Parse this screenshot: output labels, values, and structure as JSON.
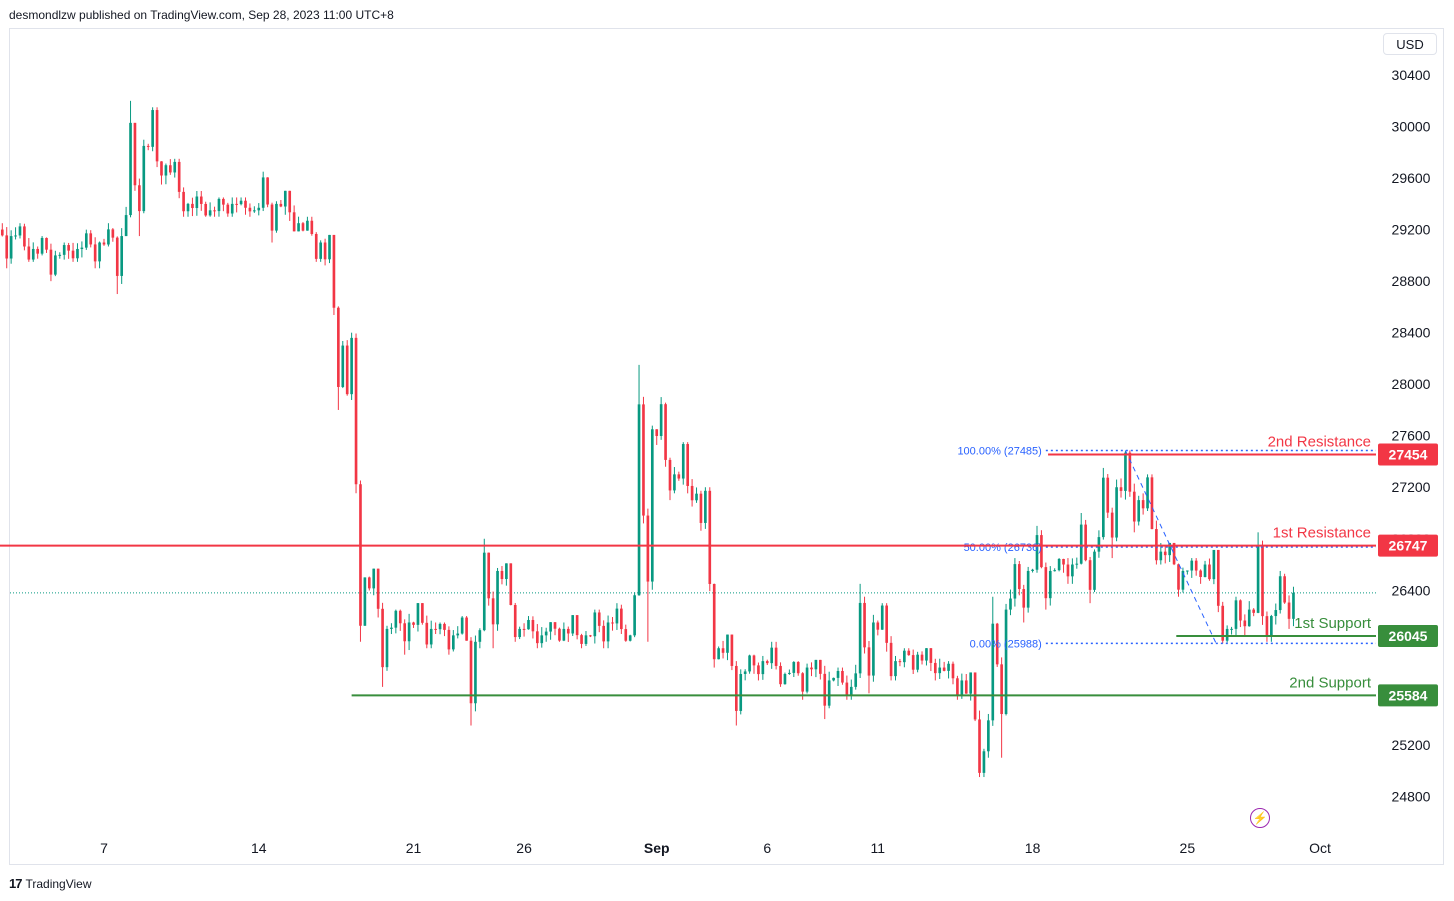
{
  "header": {
    "published_by": "desmondlzw published on TradingView.com, Sep 28, 2023 11:00 UTC+8"
  },
  "footer": {
    "brand": "TradingView"
  },
  "currency_button": "USD",
  "colors": {
    "up": "#089981",
    "down": "#f23645",
    "resistance": "#f23645",
    "support": "#388e3c",
    "fib": "#2962ff",
    "axis_text": "#131722"
  },
  "chart_data": {
    "type": "candlestick",
    "symbol_currency": "USD",
    "ylim": [
      24500,
      30750
    ],
    "y_ticks": [
      24800,
      25200,
      25600,
      26000,
      26400,
      26800,
      27200,
      27600,
      28000,
      28400,
      28800,
      29200,
      29600,
      30000,
      30400
    ],
    "y_tick_labels": [
      "24800",
      "25200",
      "25600",
      "26000",
      "26400",
      "26800",
      "27200",
      "27600",
      "28000",
      "28400",
      "28800",
      "29200",
      "29600",
      "30000",
      "30400"
    ],
    "x_tick_labels": [
      "7",
      "14",
      "21",
      "26",
      "Sep",
      "6",
      "11",
      "18",
      "25",
      "Oct"
    ],
    "x_ticks_day_index": [
      6,
      13,
      20,
      25,
      31,
      36,
      41,
      48,
      55,
      61
    ],
    "total_days": 66,
    "current_price": 26380,
    "levels": [
      {
        "name": "2nd Resistance",
        "value": 27454,
        "label": "27454",
        "kind": "resistance",
        "start_day": 48.7
      },
      {
        "name": "1st Resistance",
        "value": 26747,
        "label": "26747",
        "kind": "resistance",
        "start_day": 0
      },
      {
        "name": "1st Support",
        "value": 26045,
        "label": "26045",
        "kind": "support",
        "start_day": 54.5
      },
      {
        "name": "2nd Support",
        "value": 25584,
        "label": "25584",
        "kind": "support",
        "start_day": 17.2
      }
    ],
    "fibonacci": [
      {
        "label": "100.00% (27485)",
        "value": 27485
      },
      {
        "label": "50.00% (26736)",
        "value": 26736
      },
      {
        "label": "0.00% (25988)",
        "value": 25988
      }
    ],
    "fib_range_days": [
      48.6,
      56
    ],
    "daily_path": [
      {
        "day": 0,
        "o": 29550,
        "h": 29600,
        "l": 28950,
        "c": 29100
      },
      {
        "day": 1,
        "o": 29100,
        "h": 29250,
        "l": 28900,
        "c": 29150
      },
      {
        "day": 2,
        "o": 29150,
        "h": 29250,
        "l": 28950,
        "c": 29050
      },
      {
        "day": 3,
        "o": 29050,
        "h": 29150,
        "l": 28800,
        "c": 29000
      },
      {
        "day": 4,
        "o": 29000,
        "h": 29100,
        "l": 28950,
        "c": 29050
      },
      {
        "day": 5,
        "o": 29050,
        "h": 29200,
        "l": 28900,
        "c": 29100
      },
      {
        "day": 6,
        "o": 29100,
        "h": 29250,
        "l": 28700,
        "c": 29150
      },
      {
        "day": 7,
        "o": 29150,
        "h": 30200,
        "l": 29150,
        "c": 29850
      },
      {
        "day": 8,
        "o": 29850,
        "h": 30150,
        "l": 29550,
        "c": 29700
      },
      {
        "day": 9,
        "o": 29700,
        "h": 29750,
        "l": 29300,
        "c": 29400
      },
      {
        "day": 10,
        "o": 29400,
        "h": 29500,
        "l": 29300,
        "c": 29350
      },
      {
        "day": 11,
        "o": 29350,
        "h": 29450,
        "l": 29300,
        "c": 29400
      },
      {
        "day": 12,
        "o": 29400,
        "h": 29450,
        "l": 29300,
        "c": 29350
      },
      {
        "day": 13,
        "o": 29350,
        "h": 29650,
        "l": 29100,
        "c": 29400
      },
      {
        "day": 14,
        "o": 29400,
        "h": 29500,
        "l": 29200,
        "c": 29250
      },
      {
        "day": 15,
        "o": 29250,
        "h": 29300,
        "l": 28950,
        "c": 29100
      },
      {
        "day": 16,
        "o": 29100,
        "h": 29150,
        "l": 27800,
        "c": 28300
      },
      {
        "day": 17,
        "o": 28300,
        "h": 28400,
        "l": 26000,
        "c": 26500
      },
      {
        "day": 18,
        "o": 26500,
        "h": 26550,
        "l": 25650,
        "c": 26100
      },
      {
        "day": 19,
        "o": 26100,
        "h": 26250,
        "l": 25900,
        "c": 26150
      },
      {
        "day": 20,
        "o": 26150,
        "h": 26300,
        "l": 25950,
        "c": 26100
      },
      {
        "day": 21,
        "o": 26100,
        "h": 26150,
        "l": 25900,
        "c": 26050
      },
      {
        "day": 22,
        "o": 26050,
        "h": 26200,
        "l": 25350,
        "c": 26000
      },
      {
        "day": 23,
        "o": 26000,
        "h": 26800,
        "l": 25950,
        "c": 26550
      },
      {
        "day": 24,
        "o": 26550,
        "h": 26600,
        "l": 26000,
        "c": 26100
      },
      {
        "day": 25,
        "o": 26100,
        "h": 26200,
        "l": 25950,
        "c": 26050
      },
      {
        "day": 26,
        "o": 26050,
        "h": 26150,
        "l": 26000,
        "c": 26100
      },
      {
        "day": 27,
        "o": 26100,
        "h": 26200,
        "l": 25950,
        "c": 26050
      },
      {
        "day": 28,
        "o": 26050,
        "h": 26250,
        "l": 25950,
        "c": 26150
      },
      {
        "day": 29,
        "o": 26150,
        "h": 26300,
        "l": 26000,
        "c": 26050
      },
      {
        "day": 30,
        "o": 26050,
        "h": 28150,
        "l": 26000,
        "c": 27650
      },
      {
        "day": 31,
        "o": 27650,
        "h": 27900,
        "l": 27100,
        "c": 27300
      },
      {
        "day": 32,
        "o": 27300,
        "h": 27550,
        "l": 27050,
        "c": 27150
      },
      {
        "day": 33,
        "o": 27150,
        "h": 27200,
        "l": 25800,
        "c": 25950
      },
      {
        "day": 34,
        "o": 25950,
        "h": 26050,
        "l": 25350,
        "c": 25750
      },
      {
        "day": 35,
        "o": 25750,
        "h": 25900,
        "l": 25700,
        "c": 25850
      },
      {
        "day": 36,
        "o": 25850,
        "h": 26000,
        "l": 25650,
        "c": 25750
      },
      {
        "day": 37,
        "o": 25750,
        "h": 25850,
        "l": 25550,
        "c": 25800
      },
      {
        "day": 38,
        "o": 25800,
        "h": 25850,
        "l": 25400,
        "c": 25700
      },
      {
        "day": 39,
        "o": 25700,
        "h": 25800,
        "l": 25550,
        "c": 25650
      },
      {
        "day": 40,
        "o": 25650,
        "h": 26450,
        "l": 25600,
        "c": 26150
      },
      {
        "day": 41,
        "o": 26150,
        "h": 26300,
        "l": 25700,
        "c": 25850
      },
      {
        "day": 42,
        "o": 25850,
        "h": 25950,
        "l": 25750,
        "c": 25900
      },
      {
        "day": 43,
        "o": 25900,
        "h": 25950,
        "l": 25700,
        "c": 25800
      },
      {
        "day": 44,
        "o": 25800,
        "h": 25850,
        "l": 25550,
        "c": 25700
      },
      {
        "day": 45,
        "o": 25700,
        "h": 25750,
        "l": 24950,
        "c": 25150
      },
      {
        "day": 46,
        "o": 25150,
        "h": 26350,
        "l": 25100,
        "c": 26250
      },
      {
        "day": 47,
        "o": 26250,
        "h": 26650,
        "l": 26150,
        "c": 26550
      },
      {
        "day": 48,
        "o": 26550,
        "h": 26900,
        "l": 26250,
        "c": 26550
      },
      {
        "day": 49,
        "o": 26550,
        "h": 26650,
        "l": 26450,
        "c": 26600
      },
      {
        "day": 50,
        "o": 26600,
        "h": 27000,
        "l": 26300,
        "c": 26700
      },
      {
        "day": 51,
        "o": 26700,
        "h": 27350,
        "l": 26650,
        "c": 27200
      },
      {
        "day": 52,
        "o": 27200,
        "h": 27485,
        "l": 26850,
        "c": 27100
      },
      {
        "day": 53,
        "o": 27100,
        "h": 27300,
        "l": 26600,
        "c": 26700
      },
      {
        "day": 54,
        "o": 26700,
        "h": 26750,
        "l": 26350,
        "c": 26550
      },
      {
        "day": 55,
        "o": 26550,
        "h": 26650,
        "l": 26450,
        "c": 26600
      },
      {
        "day": 56,
        "o": 26600,
        "h": 26700,
        "l": 25988,
        "c": 26100
      },
      {
        "day": 57,
        "o": 26100,
        "h": 26350,
        "l": 26050,
        "c": 26250
      },
      {
        "day": 58,
        "o": 26250,
        "h": 26850,
        "l": 26000,
        "c": 26200
      },
      {
        "day": 59,
        "o": 26200,
        "h": 26550,
        "l": 26100,
        "c": 26380
      }
    ]
  }
}
